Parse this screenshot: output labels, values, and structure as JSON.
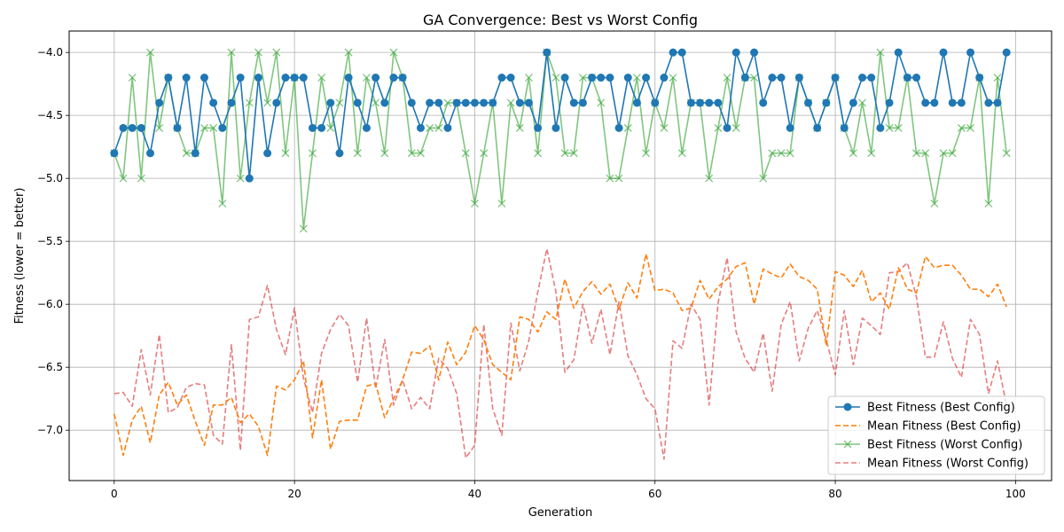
{
  "chart_data": {
    "type": "line",
    "title": "GA Convergence: Best vs Worst Config",
    "xlabel": "Generation",
    "ylabel": "Fitness (lower = better)",
    "xlim": [
      -5,
      104
    ],
    "ylim": [
      -7.4,
      -3.83
    ],
    "xticks": [
      0,
      20,
      40,
      60,
      80,
      100
    ],
    "yticks": [
      -7.0,
      -6.5,
      -6.0,
      -5.5,
      -5.0,
      -4.5,
      -4.0
    ],
    "ytick_labels": [
      "−7.0",
      "−6.5",
      "−6.0",
      "−5.5",
      "−5.0",
      "−4.5",
      "−4.0"
    ],
    "grid": true,
    "legend_position": "lower-right",
    "series": [
      {
        "name": "Best Fitness (Best Config)",
        "color": "#1f77b4",
        "style": "solid",
        "marker": "circle",
        "values": [
          -4.8,
          -4.6,
          -4.6,
          -4.6,
          -4.8,
          -4.4,
          -4.2,
          -4.6,
          -4.2,
          -4.8,
          -4.2,
          -4.4,
          -4.6,
          -4.4,
          -4.2,
          -5.0,
          -4.2,
          -4.8,
          -4.4,
          -4.2,
          -4.2,
          -4.2,
          -4.6,
          -4.6,
          -4.4,
          -4.8,
          -4.2,
          -4.4,
          -4.6,
          -4.2,
          -4.4,
          -4.2,
          -4.2,
          -4.4,
          -4.6,
          -4.4,
          -4.4,
          -4.6,
          -4.4,
          -4.4,
          -4.4,
          -4.4,
          -4.4,
          -4.2,
          -4.2,
          -4.4,
          -4.4,
          -4.6,
          -4.0,
          -4.6,
          -4.2,
          -4.4,
          -4.4,
          -4.2,
          -4.2,
          -4.2,
          -4.6,
          -4.2,
          -4.4,
          -4.2,
          -4.4,
          -4.2,
          -4.0,
          -4.0,
          -4.4,
          -4.4,
          -4.4,
          -4.4,
          -4.6,
          -4.0,
          -4.2,
          -4.0,
          -4.4,
          -4.2,
          -4.2,
          -4.6,
          -4.2,
          -4.4,
          -4.6,
          -4.4,
          -4.2,
          -4.6,
          -4.4,
          -4.2,
          -4.2,
          -4.6,
          -4.4,
          -4.0,
          -4.2,
          -4.2,
          -4.4,
          -4.4,
          -4.0,
          -4.4,
          -4.4,
          -4.0,
          -4.2,
          -4.4,
          -4.4,
          -4.0
        ]
      },
      {
        "name": "Mean Fitness (Best Config)",
        "color": "#ff7f0e",
        "style": "dashed",
        "marker": "none",
        "values": [
          -6.87,
          -7.2,
          -6.92,
          -6.81,
          -7.1,
          -6.72,
          -6.62,
          -6.8,
          -6.72,
          -6.93,
          -7.12,
          -6.8,
          -6.8,
          -6.74,
          -6.94,
          -6.87,
          -6.97,
          -7.2,
          -6.65,
          -6.68,
          -6.6,
          -6.45,
          -7.06,
          -6.6,
          -7.15,
          -6.93,
          -6.92,
          -6.92,
          -6.65,
          -6.63,
          -6.9,
          -6.75,
          -6.6,
          -6.38,
          -6.39,
          -6.33,
          -6.6,
          -6.3,
          -6.48,
          -6.38,
          -6.17,
          -6.28,
          -6.48,
          -6.54,
          -6.6,
          -6.1,
          -6.12,
          -6.22,
          -6.06,
          -6.12,
          -5.8,
          -6.03,
          -5.9,
          -5.82,
          -5.92,
          -5.84,
          -6.04,
          -5.83,
          -5.95,
          -5.6,
          -5.89,
          -5.88,
          -5.91,
          -6.05,
          -6.03,
          -5.81,
          -5.96,
          -5.86,
          -5.8,
          -5.7,
          -5.67,
          -6.0,
          -5.72,
          -5.76,
          -5.79,
          -5.68,
          -5.78,
          -5.81,
          -5.88,
          -6.33,
          -5.74,
          -5.77,
          -5.86,
          -5.73,
          -5.98,
          -5.91,
          -6.04,
          -5.71,
          -5.88,
          -5.91,
          -5.62,
          -5.71,
          -5.69,
          -5.69,
          -5.77,
          -5.88,
          -5.88,
          -5.94,
          -5.84,
          -6.02
        ]
      },
      {
        "name": "Best Fitness (Worst Config)",
        "color": "#2ca02c",
        "style": "solid",
        "marker": "x",
        "opacity": 0.6,
        "values": [
          -4.8,
          -5.0,
          -4.2,
          -5.0,
          -4.0,
          -4.6,
          -4.2,
          -4.6,
          -4.8,
          -4.8,
          -4.6,
          -4.6,
          -5.2,
          -4.0,
          -5.0,
          -4.4,
          -4.0,
          -4.4,
          -4.0,
          -4.8,
          -4.2,
          -5.4,
          -4.8,
          -4.2,
          -4.6,
          -4.4,
          -4.0,
          -4.8,
          -4.2,
          -4.4,
          -4.8,
          -4.0,
          -4.2,
          -4.8,
          -4.8,
          -4.6,
          -4.6,
          -4.4,
          -4.4,
          -4.8,
          -5.2,
          -4.8,
          -4.4,
          -5.2,
          -4.4,
          -4.6,
          -4.2,
          -4.8,
          -4.0,
          -4.2,
          -4.8,
          -4.8,
          -4.2,
          -4.2,
          -4.4,
          -5.0,
          -5.0,
          -4.6,
          -4.2,
          -4.8,
          -4.4,
          -4.6,
          -4.2,
          -4.8,
          -4.4,
          -4.4,
          -5.0,
          -4.6,
          -4.2,
          -4.6,
          -4.2,
          -4.2,
          -5.0,
          -4.8,
          -4.8,
          -4.8,
          -4.2,
          -4.4,
          -4.6,
          -4.4,
          -4.2,
          -4.6,
          -4.8,
          -4.4,
          -4.8,
          -4.0,
          -4.6,
          -4.6,
          -4.2,
          -4.8,
          -4.8,
          -5.2,
          -4.8,
          -4.8,
          -4.6,
          -4.6,
          -4.2,
          -5.2,
          -4.2,
          -4.8
        ]
      },
      {
        "name": "Mean Fitness (Worst Config)",
        "color": "#d62728",
        "style": "dashed",
        "marker": "none",
        "opacity": 0.6,
        "values": [
          -6.71,
          -6.7,
          -6.81,
          -6.36,
          -6.72,
          -6.24,
          -6.86,
          -6.82,
          -6.66,
          -6.63,
          -6.64,
          -7.04,
          -7.11,
          -6.32,
          -7.16,
          -6.12,
          -6.1,
          -5.85,
          -6.2,
          -6.4,
          -6.03,
          -6.59,
          -6.86,
          -6.39,
          -6.2,
          -6.08,
          -6.17,
          -6.62,
          -6.11,
          -6.67,
          -6.28,
          -6.8,
          -6.6,
          -6.83,
          -6.74,
          -6.83,
          -6.43,
          -6.51,
          -6.71,
          -7.22,
          -7.12,
          -6.16,
          -6.83,
          -7.04,
          -6.15,
          -6.53,
          -6.29,
          -5.9,
          -5.56,
          -5.9,
          -6.54,
          -6.44,
          -6.0,
          -6.31,
          -6.04,
          -6.4,
          -5.98,
          -6.41,
          -6.56,
          -6.75,
          -6.83,
          -7.23,
          -6.29,
          -6.35,
          -6.0,
          -6.12,
          -6.8,
          -5.99,
          -5.63,
          -6.22,
          -6.43,
          -6.54,
          -6.23,
          -6.69,
          -6.16,
          -5.98,
          -6.45,
          -6.19,
          -6.05,
          -6.28,
          -6.56,
          -6.05,
          -6.48,
          -6.11,
          -6.17,
          -6.24,
          -5.75,
          -5.74,
          -5.67,
          -5.94,
          -6.42,
          -6.42,
          -6.14,
          -6.43,
          -6.58,
          -6.12,
          -6.24,
          -6.71,
          -6.45,
          -6.8
        ]
      }
    ]
  }
}
